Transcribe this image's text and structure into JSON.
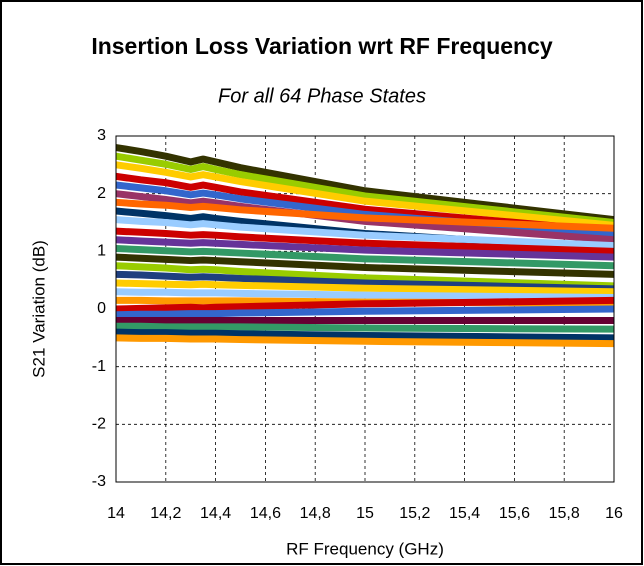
{
  "chart_data": {
    "type": "line",
    "title": "Insertion Loss Variation wrt RF Frequency",
    "subtitle": "For all 64 Phase States",
    "x_label": "RF Frequency (GHz)",
    "y_label": "S21 Variation (dB)",
    "x": [
      14,
      14.1,
      14.2,
      14.3,
      14.35,
      14.4,
      14.5,
      15,
      15.5,
      16
    ],
    "xlim": [
      14,
      16
    ],
    "xticks": [
      14,
      {
        "value": 14.2,
        "label": "14,2"
      },
      {
        "value": 14.4,
        "label": "14,4"
      },
      {
        "value": 14.6,
        "label": "14,6"
      },
      {
        "value": 14.8,
        "label": "14,8"
      },
      15,
      {
        "value": 15.2,
        "label": "15,2"
      },
      {
        "value": 15.4,
        "label": "15,4"
      },
      {
        "value": 15.6,
        "label": "15,6"
      },
      {
        "value": 15.8,
        "label": "15,8"
      },
      16
    ],
    "ylim": [
      -3,
      3
    ],
    "yticks": [
      -3,
      -2,
      -1,
      0,
      1,
      2,
      3
    ],
    "grid": true,
    "series": [
      {
        "color": "#333300",
        "values": [
          2.8,
          2.73,
          2.65,
          2.55,
          2.6,
          2.55,
          2.45,
          2.05,
          1.8,
          1.55
        ]
      },
      {
        "color": "#99cc00",
        "values": [
          2.65,
          2.58,
          2.51,
          2.42,
          2.47,
          2.42,
          2.33,
          1.96,
          1.73,
          1.5
        ]
      },
      {
        "color": "#ffcc00",
        "values": [
          2.5,
          2.44,
          2.37,
          2.29,
          2.33,
          2.29,
          2.21,
          1.87,
          1.66,
          1.45
        ]
      },
      {
        "color": "#cc0000",
        "values": [
          2.3,
          2.24,
          2.19,
          2.11,
          2.15,
          2.11,
          2.03,
          1.73,
          1.54,
          1.35
        ]
      },
      {
        "color": "#3366cc",
        "values": [
          2.15,
          2.1,
          2.05,
          1.98,
          2.01,
          1.98,
          1.91,
          1.64,
          1.47,
          1.3
        ]
      },
      {
        "color": "#993366",
        "values": [
          2.0,
          1.95,
          1.9,
          1.84,
          1.87,
          1.84,
          1.78,
          1.52,
          1.36,
          1.2
        ]
      },
      {
        "color": "#ff6600",
        "values": [
          1.85,
          1.82,
          1.8,
          1.76,
          1.78,
          1.76,
          1.72,
          1.58,
          1.49,
          1.4
        ]
      },
      {
        "color": "#003366",
        "values": [
          1.7,
          1.66,
          1.62,
          1.57,
          1.6,
          1.57,
          1.52,
          1.31,
          1.18,
          1.05
        ]
      },
      {
        "color": "#99ccff",
        "values": [
          1.55,
          1.52,
          1.5,
          1.46,
          1.48,
          1.46,
          1.42,
          1.28,
          1.19,
          1.1
        ]
      },
      {
        "color": "#cc0000",
        "values": [
          1.35,
          1.33,
          1.31,
          1.28,
          1.29,
          1.28,
          1.25,
          1.14,
          1.07,
          1.0
        ]
      },
      {
        "color": "#663399",
        "values": [
          1.2,
          1.18,
          1.16,
          1.14,
          1.15,
          1.14,
          1.12,
          1.02,
          0.96,
          0.9
        ]
      },
      {
        "color": "#339966",
        "values": [
          1.05,
          1.03,
          1.01,
          0.99,
          1.0,
          0.99,
          0.97,
          0.87,
          0.81,
          0.75
        ]
      },
      {
        "color": "#333300",
        "values": [
          0.9,
          0.88,
          0.86,
          0.84,
          0.85,
          0.84,
          0.82,
          0.72,
          0.66,
          0.6
        ]
      },
      {
        "color": "#99cc00",
        "values": [
          0.75,
          0.73,
          0.71,
          0.68,
          0.69,
          0.68,
          0.65,
          0.54,
          0.47,
          0.4
        ]
      },
      {
        "color": "#1f3f7f",
        "values": [
          0.6,
          0.59,
          0.57,
          0.55,
          0.56,
          0.55,
          0.53,
          0.45,
          0.4,
          0.35
        ]
      },
      {
        "color": "#ffcc00",
        "values": [
          0.45,
          0.44,
          0.43,
          0.42,
          0.43,
          0.42,
          0.41,
          0.36,
          0.33,
          0.3
        ]
      },
      {
        "color": "#99ccff",
        "values": [
          0.3,
          0.29,
          0.29,
          0.28,
          0.28,
          0.28,
          0.27,
          0.24,
          0.22,
          0.2
        ]
      },
      {
        "color": "#ff9900",
        "values": [
          0.15,
          0.15,
          0.14,
          0.14,
          0.14,
          0.14,
          0.14,
          0.12,
          0.11,
          0.1
        ]
      },
      {
        "color": "#cc0000",
        "values": [
          0,
          0.01,
          0.02,
          0.03,
          0.02,
          0.03,
          0.04,
          0.09,
          0.12,
          0.15
        ]
      },
      {
        "color": "#3366cc",
        "values": [
          -0.1,
          -0.09,
          -0.09,
          -0.08,
          -0.08,
          -0.08,
          -0.07,
          -0.04,
          -0.02,
          0
        ]
      },
      {
        "color": "#660033",
        "values": [
          -0.2,
          -0.2,
          -0.2,
          -0.2,
          -0.2,
          -0.2,
          -0.2,
          -0.2,
          -0.2,
          -0.2
        ]
      },
      {
        "color": "#339966",
        "values": [
          -0.3,
          -0.3,
          -0.31,
          -0.31,
          -0.31,
          -0.31,
          -0.31,
          -0.33,
          -0.34,
          -0.35
        ]
      },
      {
        "color": "#003366",
        "values": [
          -0.4,
          -0.41,
          -0.41,
          -0.42,
          -0.42,
          -0.42,
          -0.43,
          -0.46,
          -0.48,
          -0.5
        ]
      },
      {
        "color": "#ff9900",
        "values": [
          -0.5,
          -0.51,
          -0.51,
          -0.52,
          -0.52,
          -0.52,
          -0.53,
          -0.56,
          -0.58,
          -0.6
        ]
      }
    ]
  }
}
